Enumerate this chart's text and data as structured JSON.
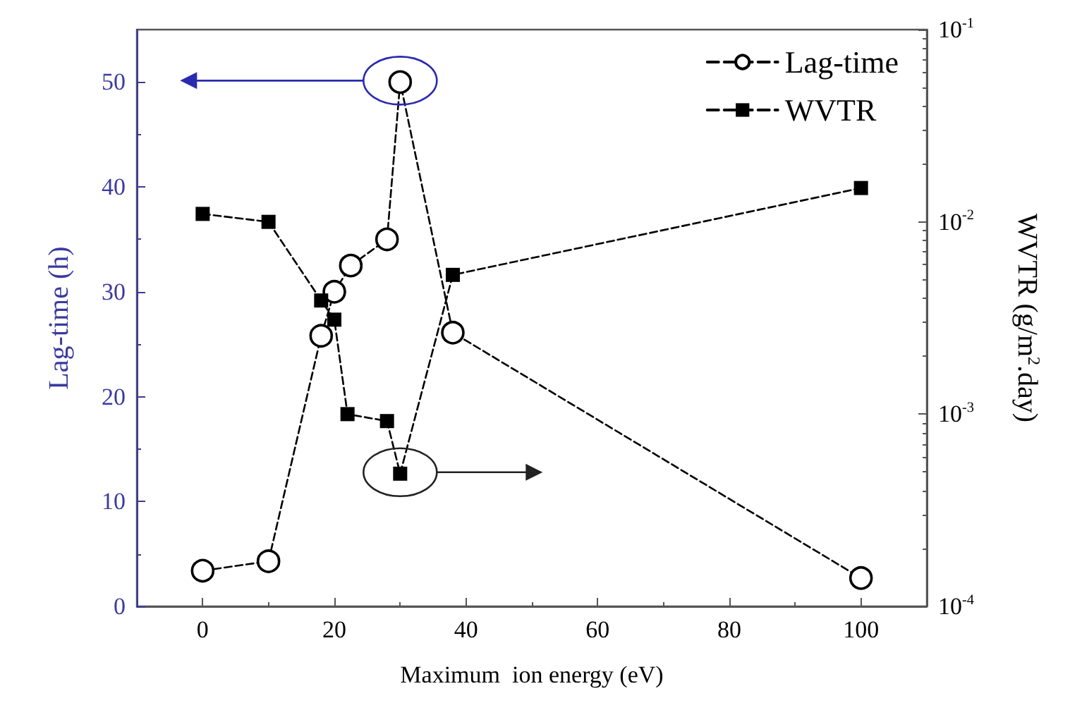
{
  "chart_data": {
    "type": "line",
    "xlabel": "Maximum  ion energy (eV)",
    "ylabel": "Lag-time (h)",
    "y2label": "WVTR (g/m$^{2}$.day)",
    "xlim": [
      -10,
      110
    ],
    "xticks": [
      0,
      20,
      40,
      60,
      80,
      100
    ],
    "ylim": [
      0,
      55
    ],
    "yticks": [
      0,
      10,
      20,
      30,
      40,
      50
    ],
    "y2lim": [
      0.0001,
      0.1
    ],
    "y2ticks": [
      {
        "value": 0.0001,
        "label": "10$^{-4}$"
      },
      {
        "value": 0.001,
        "label": "10$^{-3}$"
      },
      {
        "value": 0.01,
        "label": "10$^{-2}$"
      },
      {
        "value": 0.1,
        "label": "10$^{-1}$"
      }
    ],
    "log": "y2",
    "grid": false,
    "legend": "top right",
    "line_style": "dashed",
    "series": [
      {
        "name": "Lag-time",
        "color": "#000000",
        "marker": "circle",
        "x": [
          0,
          10,
          18,
          20,
          22.5,
          28,
          30,
          38,
          100
        ],
        "values": [
          3.4,
          4.3,
          25.8,
          30,
          32.5,
          35,
          50,
          26.1,
          2.7
        ]
      },
      {
        "name": "WVTR",
        "color": "#000000",
        "marker": "square",
        "axis": "y2",
        "x": [
          0,
          10,
          18,
          20,
          22,
          28,
          30,
          38,
          100
        ],
        "values": [
          0.011,
          0.01,
          0.0039,
          0.0031,
          0.001,
          0.00092,
          0.00049,
          0.0053,
          0.015
        ]
      }
    ]
  }
}
